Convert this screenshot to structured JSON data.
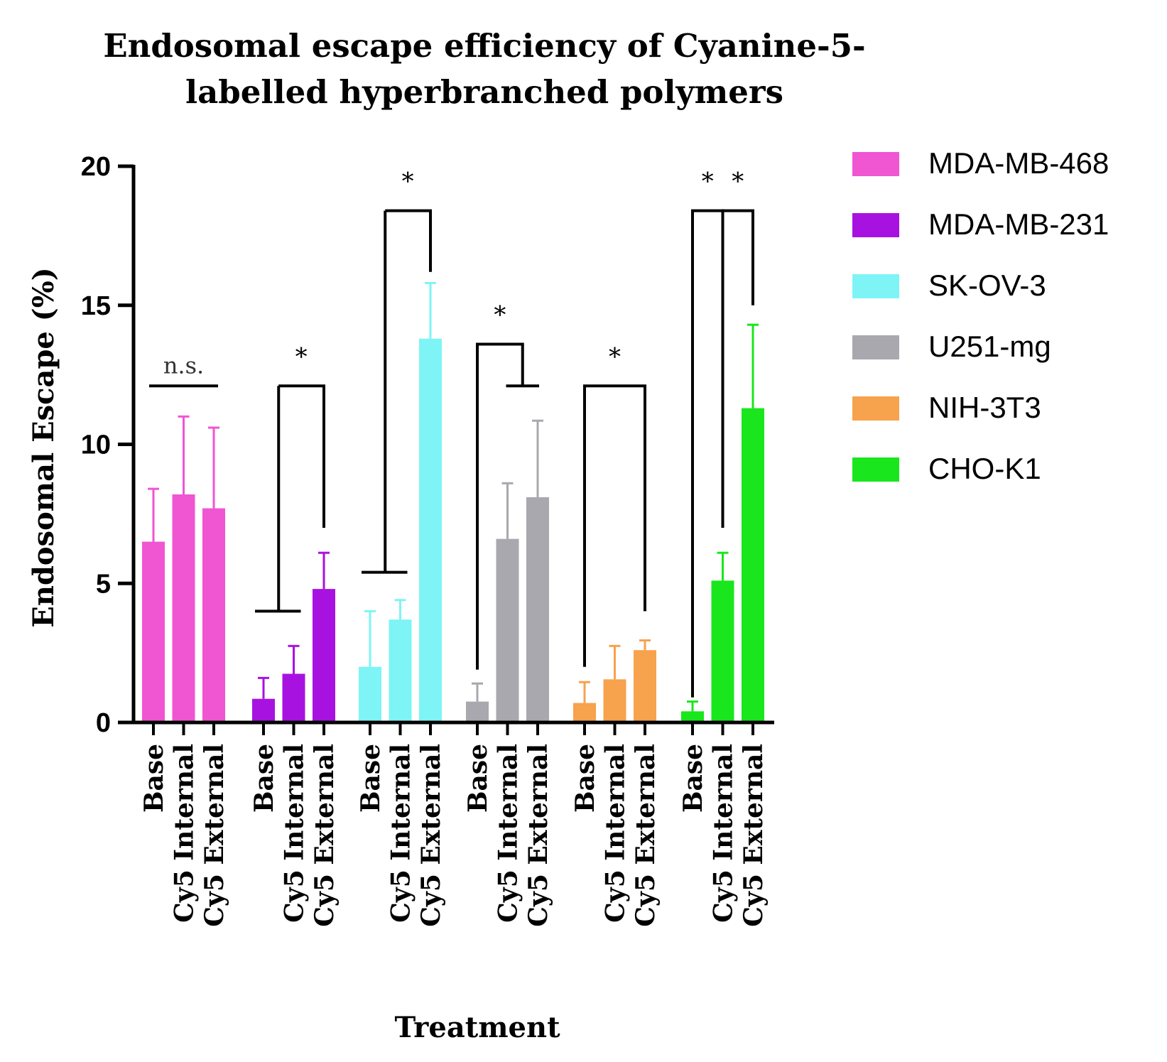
{
  "chart_data": {
    "type": "bar",
    "title_lines": [
      "Endosomal escape efficiency of Cyanine-5-",
      "labelled hyperbranched polymers"
    ],
    "xlabel": "Treatment",
    "ylabel": "Endosomal Escape (%)",
    "ylim": [
      0,
      20
    ],
    "yticks": [
      "0",
      "5",
      "10",
      "15",
      "20"
    ],
    "tick_values": [
      0,
      5,
      10,
      15,
      20
    ],
    "categories": [
      "Base",
      "Cy5 Internal",
      "Cy5 External"
    ],
    "legend_position": "right",
    "grid": false,
    "series": [
      {
        "name": "MDA-MB-468",
        "color": "#f055d2",
        "values": [
          6.5,
          8.2,
          7.7
        ],
        "errors": [
          1.9,
          2.8,
          2.9
        ]
      },
      {
        "name": "MDA-MB-231",
        "color": "#a812e0",
        "values": [
          0.85,
          1.75,
          4.8
        ],
        "errors": [
          0.75,
          1.0,
          1.3
        ]
      },
      {
        "name": "SK-OV-3",
        "color": "#7ef4f6",
        "values": [
          2.0,
          3.7,
          13.8
        ],
        "errors": [
          2.0,
          0.7,
          2.0
        ]
      },
      {
        "name": "U251-mg",
        "color": "#a8a8ae",
        "values": [
          0.75,
          6.6,
          8.1
        ],
        "errors": [
          0.65,
          2.0,
          2.75
        ]
      },
      {
        "name": "NIH-3T3",
        "color": "#f7a24d",
        "values": [
          0.7,
          1.55,
          2.6
        ],
        "errors": [
          0.75,
          1.2,
          0.35
        ]
      },
      {
        "name": "CHO-K1",
        "color": "#19e61c",
        "values": [
          0.4,
          5.1,
          11.3
        ],
        "errors": [
          0.35,
          1.0,
          3.0
        ]
      }
    ],
    "annotations": [
      {
        "group": 0,
        "type": "line",
        "label": "n.s.",
        "from": 0,
        "to": 2,
        "y": 12.1
      },
      {
        "group": 1,
        "type": "bracket",
        "label": "*",
        "from": 0,
        "to": 2,
        "y": 12.1,
        "left_bottom": 4.0,
        "right_bottom": 7.0
      },
      {
        "group": 2,
        "type": "bracket",
        "label": "*",
        "from": 0,
        "to": 2,
        "y": 18.4,
        "left_bottom": 5.4,
        "right_bottom": 16.2
      },
      {
        "group": 3,
        "type": "bracket-split",
        "label": "*",
        "from": 0,
        "to": 2,
        "y": 13.6,
        "left_bottom": 1.9,
        "split_y": 12.1
      },
      {
        "group": 4,
        "type": "bracket",
        "label": "*",
        "from": 0,
        "to": 2,
        "y": 12.1,
        "left_bottom": 2.0,
        "right_bottom": 4.0
      },
      {
        "group": 5,
        "type": "bracket",
        "label": "*",
        "from": 0,
        "to": 1,
        "y": 18.4,
        "left_bottom": 0.9,
        "right_bottom": 7.0
      },
      {
        "group": 5,
        "type": "bracket",
        "label": "*",
        "from": 1,
        "to": 2,
        "y": 18.4,
        "left_bottom": 7.0,
        "right_bottom": 15.0
      }
    ]
  }
}
